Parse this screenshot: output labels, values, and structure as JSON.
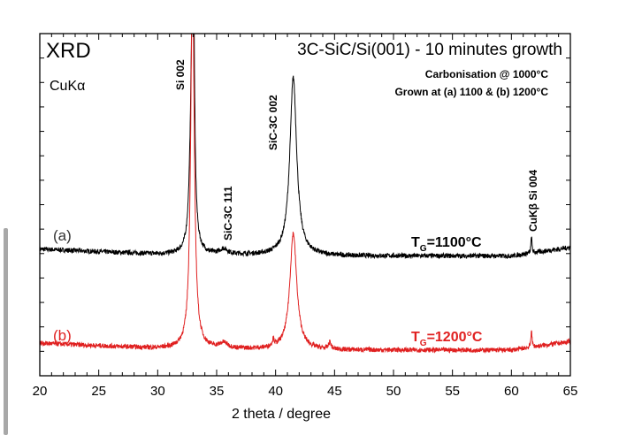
{
  "chart_data": {
    "type": "line",
    "title": "3C-SiC/Si(001) - 10 minutes growth",
    "corner_label": "XRD",
    "radiation_label": "CuKα",
    "subtitle_lines": [
      "Carbonisation @ 1000°C",
      "Grown at (a) 1100 & (b) 1200°C"
    ],
    "xlabel": "2 theta / degree",
    "ylabel": "",
    "xlim": [
      20,
      65
    ],
    "ylim": [
      0,
      100
    ],
    "xticks": [
      "20",
      "25",
      "30",
      "35",
      "40",
      "45",
      "50",
      "55",
      "60",
      "65"
    ],
    "grid": false,
    "peak_labels": [
      {
        "text": "Si 002",
        "x": 33.0
      },
      {
        "text": "SiC-3C 111",
        "x": 35.6
      },
      {
        "text": "SiC-3C 002",
        "x": 41.4
      },
      {
        "text": "CuKβ Si 004",
        "x": 61.7
      }
    ],
    "series": [
      {
        "name": "(a)",
        "annotation": "TG=1100°C",
        "annotation_main": "T",
        "annotation_sub": "G",
        "annotation_rest": "=1100°C",
        "color": "#000000",
        "baseline": [
          [
            20,
            37
          ],
          [
            30,
            35.5
          ],
          [
            45,
            35
          ],
          [
            60,
            35
          ],
          [
            65,
            37.5
          ]
        ],
        "peaks": [
          {
            "x": 33.0,
            "height": 90,
            "width": 0.12
          },
          {
            "x": 32.85,
            "height": 25,
            "width": 0.2
          },
          {
            "x": 35.6,
            "height": 1.5,
            "width": 0.4
          },
          {
            "x": 41.5,
            "height": 52,
            "width": 0.35
          },
          {
            "x": 61.7,
            "height": 5,
            "width": 0.05
          }
        ]
      },
      {
        "name": "(b)",
        "annotation": "TG=1200°C",
        "annotation_main": "T",
        "annotation_sub": "G",
        "annotation_rest": "=1200°C",
        "color": "#e02020",
        "baseline": [
          [
            20,
            9.5
          ],
          [
            30,
            8
          ],
          [
            45,
            7.5
          ],
          [
            60,
            7.5
          ],
          [
            65,
            10
          ]
        ],
        "peaks": [
          {
            "x": 32.95,
            "height": 110,
            "width": 0.18
          },
          {
            "x": 35.6,
            "height": 1.5,
            "width": 0.4
          },
          {
            "x": 39.8,
            "height": 2,
            "width": 0.1
          },
          {
            "x": 41.5,
            "height": 34,
            "width": 0.35
          },
          {
            "x": 44.6,
            "height": 2,
            "width": 0.12
          },
          {
            "x": 61.7,
            "height": 5.5,
            "width": 0.05
          }
        ]
      }
    ]
  }
}
